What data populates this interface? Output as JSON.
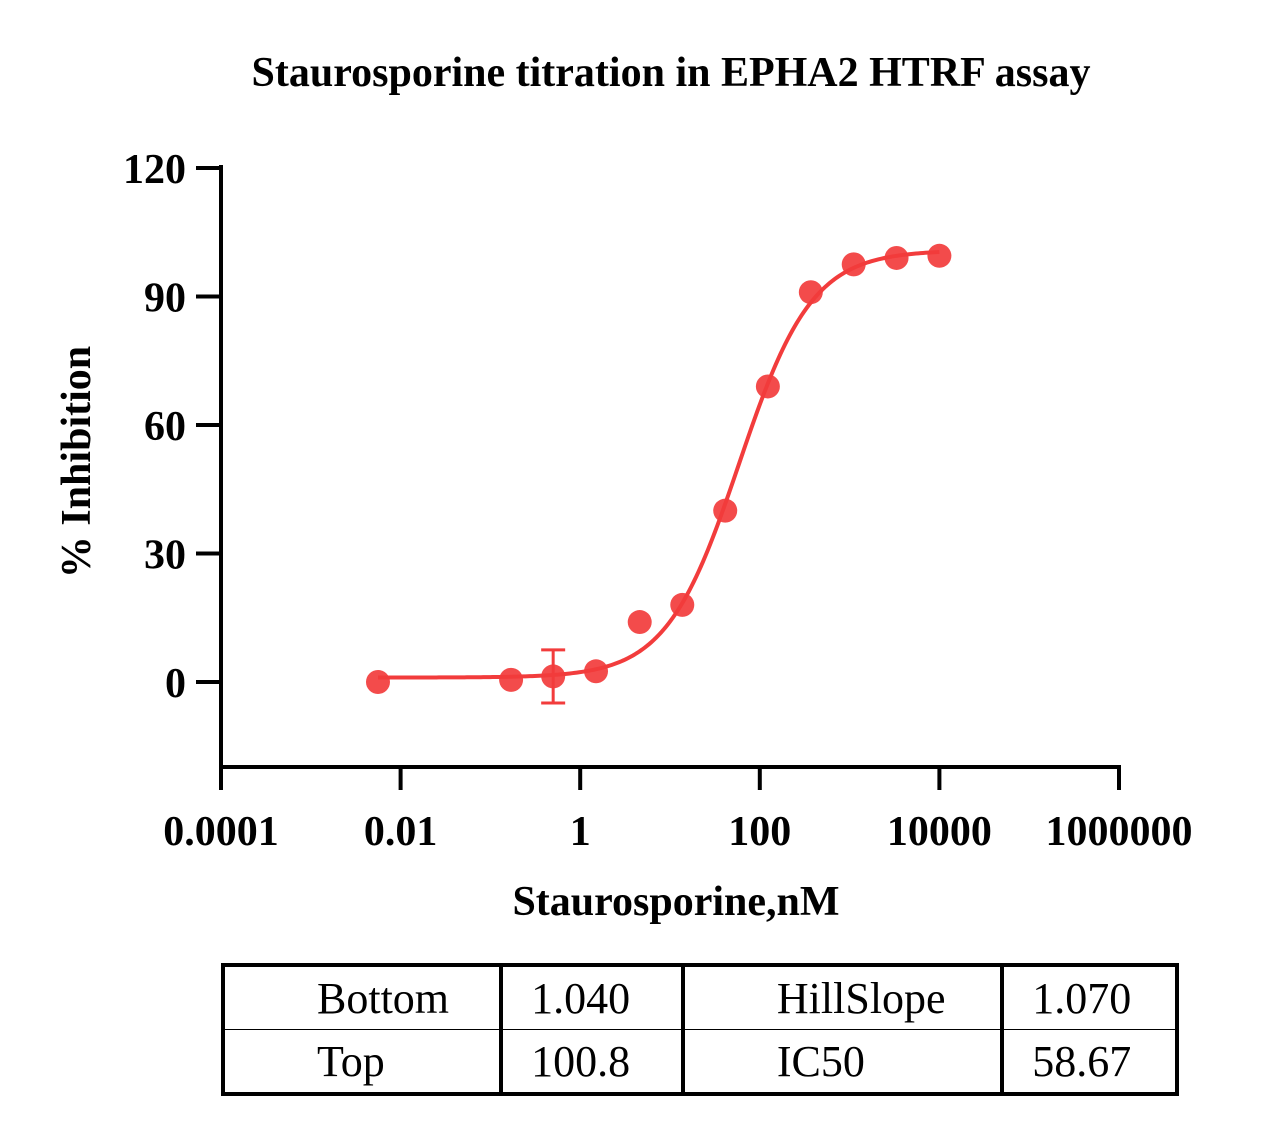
{
  "chart_data": {
    "type": "scatter",
    "title": "Staurosporine titration in EPHA2 HTRF assay",
    "xlabel": "Staurosporine,nM",
    "ylabel": "% Inhibition",
    "x_scale": "log",
    "xlim": [
      0.0001,
      1000000
    ],
    "ylim": [
      -27,
      120
    ],
    "x_ticks": [
      "0.0001",
      "0.01",
      "1",
      "100",
      "10000",
      "1000000"
    ],
    "x_tick_values": [
      0.0001,
      0.01,
      1,
      100,
      10000,
      1000000
    ],
    "y_ticks": [
      "120",
      "90",
      "60",
      "30",
      "0"
    ],
    "y_tick_values": [
      120,
      90,
      60,
      30,
      0
    ],
    "color": "#f23c3c",
    "series": [
      {
        "x": [
          0.0056,
          0.17,
          0.5,
          1.5,
          4.6,
          13.7,
          41.2,
          123,
          370,
          1111,
          3333,
          10000
        ],
        "y": [
          0.0,
          0.5,
          1.3,
          2.5,
          14.0,
          18.0,
          40.0,
          69.0,
          91.0,
          97.5,
          99.0,
          99.5
        ],
        "error": [
          null,
          null,
          6.2,
          null,
          null,
          null,
          null,
          null,
          null,
          null,
          null,
          null
        ]
      }
    ],
    "fit": {
      "model": "four-parameter logistic",
      "bottom": 1.04,
      "top": 100.8,
      "hillslope": 1.07,
      "ic50": 58.67
    }
  },
  "params_table": {
    "rows": [
      [
        "Bottom",
        "1.040",
        "HillSlope",
        "1.070"
      ],
      [
        "Top",
        "100.8",
        "IC50",
        "58.67"
      ]
    ]
  }
}
